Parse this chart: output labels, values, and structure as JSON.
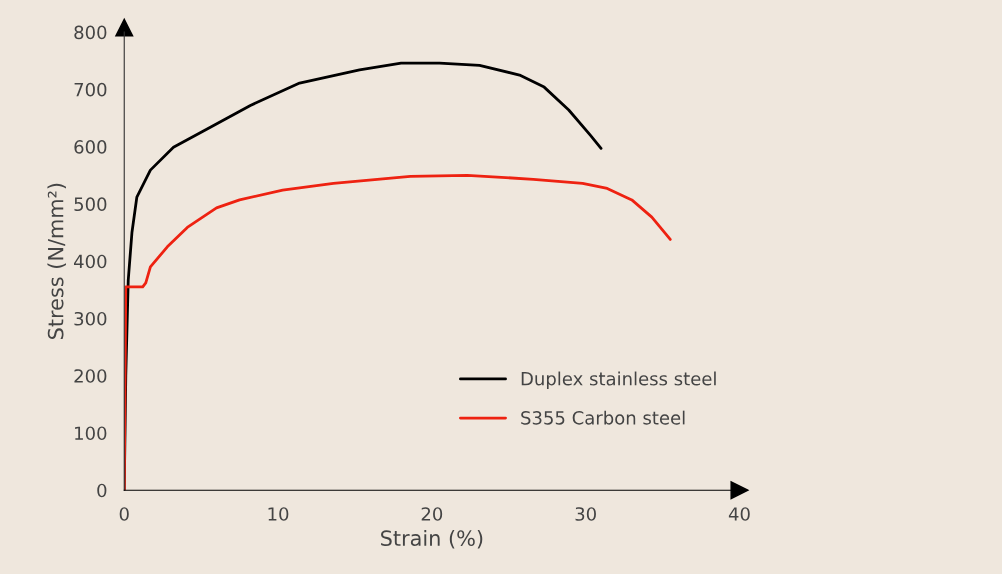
{
  "chart_data": {
    "type": "line",
    "xlabel": "Strain (%)",
    "ylabel": "Stress (N/mm²)",
    "xlim": [
      0,
      40
    ],
    "xticks": [
      0,
      10,
      20,
      30,
      40
    ],
    "ylim": [
      0,
      800
    ],
    "yticks": [
      0,
      100,
      200,
      300,
      400,
      500,
      600,
      700,
      800
    ],
    "grid": false,
    "legend": "bottom right",
    "marker": "none",
    "line_style": "solid",
    "series": [
      {
        "name": "Duplex stainless steel",
        "color": "#000000",
        "x": [
          0,
          0.1,
          0.26,
          0.5,
          0.82,
          1.7,
          3.2,
          5.6,
          8.2,
          11.4,
          15.3,
          18,
          20.5,
          23.1,
          25.7,
          27.3,
          28.9,
          30.3,
          31.0
        ],
        "values": [
          0,
          200,
          367,
          450,
          512,
          559,
          599,
          634,
          672,
          711,
          734,
          746,
          746,
          742,
          725,
          704,
          664,
          620,
          597
        ]
      },
      {
        "name": "S355 Carbon steel",
        "color": "#ee2211",
        "x": [
          0,
          0.1,
          0.5,
          1.2,
          1.4,
          1.7,
          2.8,
          4.1,
          6.0,
          7.5,
          10.3,
          13.6,
          18.6,
          22.3,
          26.6,
          29.8,
          31.4,
          33.0,
          34.3,
          35.5
        ],
        "values": [
          0,
          355,
          355,
          355,
          362,
          390,
          425,
          459,
          493,
          507,
          524,
          536,
          548,
          550,
          543,
          536,
          527,
          507,
          477,
          438
        ]
      }
    ]
  }
}
